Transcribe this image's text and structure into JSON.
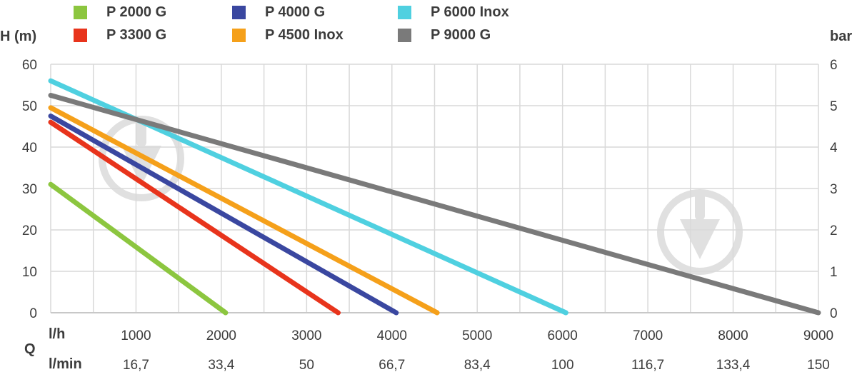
{
  "chart_data": {
    "type": "line",
    "title": "",
    "ylabel_left": "H (m)",
    "ylabel_right": "bar",
    "xlabel": "Q",
    "x_unit_primary": "l/h",
    "x_unit_secondary": "l/min",
    "xlim": [
      0,
      9000
    ],
    "ylim": [
      0,
      60
    ],
    "ylim_right": [
      0,
      6
    ],
    "x_ticks": [
      1000,
      2000,
      3000,
      4000,
      5000,
      6000,
      7000,
      8000,
      9000
    ],
    "x_tick_labels_lh": [
      "1000",
      "2000",
      "3000",
      "4000",
      "5000",
      "6000",
      "7000",
      "8000",
      "9000"
    ],
    "x_tick_labels_lmin": [
      "16,7",
      "33,4",
      "50",
      "66,7",
      "83,4",
      "100",
      "116,7",
      "133,4",
      "150"
    ],
    "y_ticks": [
      0,
      10,
      20,
      30,
      40,
      50,
      60
    ],
    "y_tick_labels_left": [
      "0",
      "10",
      "20",
      "30",
      "40",
      "50",
      "60"
    ],
    "y_tick_labels_right": [
      "0",
      "1",
      "2",
      "3",
      "4",
      "5",
      "6"
    ],
    "grid": true,
    "legend_position": "top",
    "series": [
      {
        "name": "P 2000 G",
        "color": "#8cc63f",
        "x": [
          0,
          2050
        ],
        "y": [
          31,
          0
        ]
      },
      {
        "name": "P 3300 G",
        "color": "#e8341c",
        "x": [
          0,
          3370
        ],
        "y": [
          46,
          0
        ]
      },
      {
        "name": "P 4000 G",
        "color": "#3a47a0",
        "x": [
          0,
          4050
        ],
        "y": [
          47.5,
          0
        ]
      },
      {
        "name": "P 4500 Inox",
        "color": "#f5a01a",
        "x": [
          0,
          4530
        ],
        "y": [
          49.5,
          0
        ]
      },
      {
        "name": "P 6000 Inox",
        "color": "#4fd0e0",
        "x": [
          0,
          6040
        ],
        "y": [
          56,
          0
        ]
      },
      {
        "name": "P 9000 G",
        "color": "#7a7a7a",
        "x": [
          0,
          9000
        ],
        "y": [
          52.5,
          0
        ]
      }
    ]
  },
  "colors": {
    "grid": "#d9d9d9",
    "axis": "#c8c8c8",
    "text": "#3c3c3c",
    "watermark": "#e0e0e0"
  },
  "watermark_icon": "drop-logo-icon"
}
